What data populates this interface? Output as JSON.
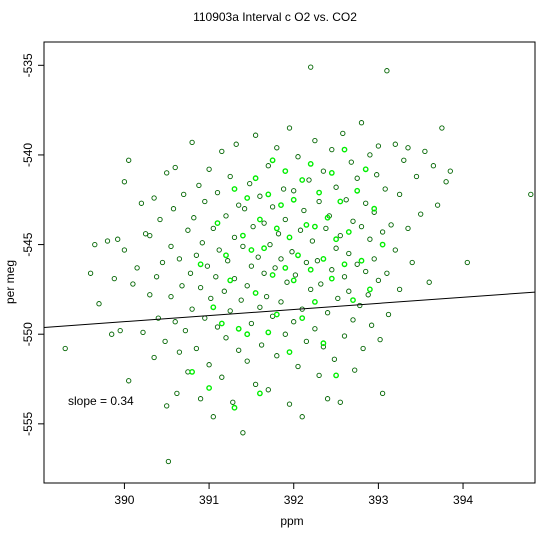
{
  "chart_data": {
    "type": "scatter",
    "title": "110903a   Interval c O2 vs. CO2",
    "xlabel": "ppm",
    "ylabel": "per meg",
    "xlim": [
      389.05,
      394.85
    ],
    "ylim": [
      -558.3,
      -533.7
    ],
    "x_ticks": [
      390,
      391,
      392,
      393,
      394
    ],
    "x_tick_labels": [
      "390",
      "391",
      "392",
      "393",
      "394"
    ],
    "y_ticks": [
      -535,
      -540,
      -545,
      -550,
      -555
    ],
    "y_tick_labels": [
      "-535",
      "-540",
      "-545",
      "-550",
      "-555"
    ],
    "grid": false,
    "annotation": "slope =  0.34",
    "fit_line": {
      "slope": 0.34,
      "intercept": -681.9
    },
    "colors": {
      "points_dark": "#006400",
      "points_bright": "#00ee00",
      "line": "#000000",
      "frame": "#000000"
    },
    "series": [
      {
        "color": "#006400",
        "points": [
          [
            389.3,
            -550.8
          ],
          [
            389.6,
            -546.6
          ],
          [
            389.65,
            -545.0
          ],
          [
            389.7,
            -548.3
          ],
          [
            389.8,
            -544.8
          ],
          [
            389.85,
            -550.0
          ],
          [
            389.88,
            -546.9
          ],
          [
            389.92,
            -544.7
          ],
          [
            389.95,
            -549.8
          ],
          [
            390.0,
            -545.3
          ],
          [
            390.0,
            -541.5
          ],
          [
            390.05,
            -540.3
          ],
          [
            390.05,
            -552.6
          ],
          [
            390.1,
            -547.2
          ],
          [
            390.15,
            -546.3
          ],
          [
            390.2,
            -542.7
          ],
          [
            390.22,
            -549.9
          ],
          [
            390.25,
            -544.4
          ],
          [
            390.3,
            -547.8
          ],
          [
            390.3,
            -544.5
          ],
          [
            390.35,
            -551.3
          ],
          [
            390.35,
            -542.4
          ],
          [
            390.38,
            -546.8
          ],
          [
            390.4,
            -549.1
          ],
          [
            390.42,
            -543.6
          ],
          [
            390.45,
            -546.0
          ],
          [
            390.48,
            -550.4
          ],
          [
            390.5,
            -541.0
          ],
          [
            390.5,
            -554.0
          ],
          [
            390.52,
            -557.1
          ],
          [
            390.55,
            -545.1
          ],
          [
            390.55,
            -547.9
          ],
          [
            390.58,
            -543.0
          ],
          [
            390.6,
            -549.3
          ],
          [
            390.6,
            -540.7
          ],
          [
            390.62,
            -553.3
          ],
          [
            390.65,
            -545.8
          ],
          [
            390.65,
            -551.0
          ],
          [
            390.68,
            -547.3
          ],
          [
            390.7,
            -542.2
          ],
          [
            390.72,
            -549.8
          ],
          [
            390.75,
            -544.2
          ],
          [
            390.75,
            -552.1
          ],
          [
            390.78,
            -546.6
          ],
          [
            390.8,
            -539.3
          ],
          [
            390.8,
            -548.6
          ],
          [
            390.82,
            -543.5
          ],
          [
            390.85,
            -550.8
          ],
          [
            390.85,
            -545.6
          ],
          [
            390.88,
            -541.7
          ],
          [
            390.9,
            -547.4
          ],
          [
            390.9,
            -553.6
          ],
          [
            390.92,
            -544.9
          ],
          [
            390.95,
            -549.1
          ],
          [
            390.95,
            -542.6
          ],
          [
            390.98,
            -546.2
          ],
          [
            391.0,
            -551.7
          ],
          [
            391.0,
            -540.8
          ],
          [
            391.02,
            -548.0
          ],
          [
            391.05,
            -544.1
          ],
          [
            391.05,
            -554.6
          ],
          [
            391.08,
            -546.8
          ],
          [
            391.1,
            -542.1
          ],
          [
            391.1,
            -549.6
          ],
          [
            391.12,
            -545.3
          ],
          [
            391.15,
            -552.4
          ],
          [
            391.15,
            -539.8
          ],
          [
            391.18,
            -547.6
          ],
          [
            391.2,
            -543.4
          ],
          [
            391.2,
            -550.2
          ],
          [
            391.22,
            -545.9
          ],
          [
            391.25,
            -541.2
          ],
          [
            391.25,
            -548.7
          ],
          [
            391.28,
            -553.8
          ],
          [
            391.3,
            -544.6
          ],
          [
            391.3,
            -546.9
          ],
          [
            391.32,
            -539.4
          ],
          [
            391.35,
            -550.9
          ],
          [
            391.35,
            -542.8
          ],
          [
            391.38,
            -548.1
          ],
          [
            391.4,
            -545.1
          ],
          [
            391.4,
            -555.5
          ],
          [
            391.42,
            -543.0
          ],
          [
            391.45,
            -547.3
          ],
          [
            391.45,
            -551.5
          ],
          [
            391.48,
            -541.6
          ],
          [
            391.5,
            -546.2
          ],
          [
            391.5,
            -549.4
          ],
          [
            391.52,
            -544.0
          ],
          [
            391.55,
            -538.9
          ],
          [
            391.55,
            -552.8
          ],
          [
            391.58,
            -545.7
          ],
          [
            391.6,
            -548.5
          ],
          [
            391.6,
            -542.3
          ],
          [
            391.62,
            -550.6
          ],
          [
            391.65,
            -546.6
          ],
          [
            391.65,
            -543.8
          ],
          [
            391.68,
            -547.9
          ],
          [
            391.7,
            -540.6
          ],
          [
            391.7,
            -553.1
          ],
          [
            391.72,
            -545.0
          ],
          [
            391.75,
            -549.0
          ],
          [
            391.75,
            -542.9
          ],
          [
            391.78,
            -546.3
          ],
          [
            391.8,
            -551.2
          ],
          [
            391.8,
            -539.6
          ],
          [
            391.82,
            -544.4
          ],
          [
            391.85,
            -548.2
          ],
          [
            391.85,
            -545.8
          ],
          [
            391.88,
            -541.9
          ],
          [
            391.9,
            -550.0
          ],
          [
            391.9,
            -543.6
          ],
          [
            391.92,
            -547.1
          ],
          [
            391.95,
            -553.9
          ],
          [
            391.95,
            -538.5
          ],
          [
            391.98,
            -545.4
          ],
          [
            392.0,
            -549.3
          ],
          [
            392.0,
            -542.0
          ],
          [
            392.02,
            -546.7
          ],
          [
            392.05,
            -551.8
          ],
          [
            392.05,
            -540.1
          ],
          [
            392.08,
            -544.2
          ],
          [
            392.1,
            -548.6
          ],
          [
            392.1,
            -554.6
          ],
          [
            392.12,
            -543.1
          ],
          [
            392.15,
            -546.0
          ],
          [
            392.15,
            -550.4
          ],
          [
            392.18,
            -541.4
          ],
          [
            392.2,
            -547.5
          ],
          [
            392.2,
            -535.1
          ],
          [
            392.22,
            -544.8
          ],
          [
            392.25,
            -549.7
          ],
          [
            392.25,
            -539.2
          ],
          [
            392.28,
            -545.9
          ],
          [
            392.3,
            -552.3
          ],
          [
            392.3,
            -542.6
          ],
          [
            392.32,
            -547.2
          ],
          [
            392.35,
            -550.7
          ],
          [
            392.35,
            -540.9
          ],
          [
            392.38,
            -544.1
          ],
          [
            392.4,
            -548.8
          ],
          [
            392.4,
            -553.6
          ],
          [
            392.42,
            -543.4
          ],
          [
            392.45,
            -546.4
          ],
          [
            392.45,
            -539.7
          ],
          [
            392.48,
            -551.4
          ],
          [
            392.5,
            -545.2
          ],
          [
            392.5,
            -541.8
          ],
          [
            392.52,
            -548.0
          ],
          [
            392.55,
            -544.5
          ],
          [
            392.55,
            -553.8
          ],
          [
            392.58,
            -538.8
          ],
          [
            392.6,
            -546.8
          ],
          [
            392.6,
            -550.1
          ],
          [
            392.62,
            -542.5
          ],
          [
            392.65,
            -547.6
          ],
          [
            392.65,
            -545.5
          ],
          [
            392.68,
            -540.4
          ],
          [
            392.7,
            -549.2
          ],
          [
            392.7,
            -543.7
          ],
          [
            392.72,
            -552.0
          ],
          [
            392.75,
            -546.1
          ],
          [
            392.75,
            -541.3
          ],
          [
            392.78,
            -548.4
          ],
          [
            392.8,
            -544.0
          ],
          [
            392.8,
            -538.2
          ],
          [
            392.82,
            -550.8
          ],
          [
            392.85,
            -546.5
          ],
          [
            392.85,
            -542.7
          ],
          [
            392.88,
            -547.8
          ],
          [
            392.9,
            -544.7
          ],
          [
            392.9,
            -540.0
          ],
          [
            392.92,
            -549.5
          ],
          [
            392.95,
            -543.2
          ],
          [
            392.95,
            -545.8
          ],
          [
            392.98,
            -541.1
          ],
          [
            393.0,
            -547.0
          ],
          [
            393.0,
            -539.5
          ],
          [
            393.02,
            -550.3
          ],
          [
            393.05,
            -544.3
          ],
          [
            393.05,
            -553.3
          ],
          [
            393.08,
            -541.9
          ],
          [
            393.1,
            -546.6
          ],
          [
            393.1,
            -535.3
          ],
          [
            393.12,
            -548.9
          ],
          [
            393.15,
            -543.9
          ],
          [
            393.2,
            -539.4
          ],
          [
            393.2,
            -545.3
          ],
          [
            393.25,
            -542.2
          ],
          [
            393.25,
            -547.5
          ],
          [
            393.3,
            -540.3
          ],
          [
            393.35,
            -544.1
          ],
          [
            393.35,
            -539.6
          ],
          [
            393.4,
            -546.0
          ],
          [
            393.45,
            -541.2
          ],
          [
            393.5,
            -543.3
          ],
          [
            393.55,
            -539.8
          ],
          [
            393.6,
            -547.1
          ],
          [
            393.65,
            -540.6
          ],
          [
            393.7,
            -542.8
          ],
          [
            393.75,
            -538.5
          ],
          [
            393.8,
            -541.5
          ],
          [
            393.85,
            -540.9
          ],
          [
            394.05,
            -546.0
          ],
          [
            394.8,
            -542.2
          ]
        ]
      },
      {
        "color": "#00ee00",
        "points": [
          [
            390.8,
            -552.1
          ],
          [
            390.9,
            -546.1
          ],
          [
            391.0,
            -553.0
          ],
          [
            391.05,
            -548.5
          ],
          [
            391.1,
            -543.8
          ],
          [
            391.15,
            -549.4
          ],
          [
            391.2,
            -545.6
          ],
          [
            391.25,
            -547.0
          ],
          [
            391.3,
            -554.1
          ],
          [
            391.3,
            -541.9
          ],
          [
            391.35,
            -549.7
          ],
          [
            391.4,
            -544.5
          ],
          [
            391.45,
            -542.4
          ],
          [
            391.45,
            -550.0
          ],
          [
            391.5,
            -545.3
          ],
          [
            391.55,
            -547.7
          ],
          [
            391.55,
            -541.3
          ],
          [
            391.6,
            -543.6
          ],
          [
            391.6,
            -553.3
          ],
          [
            391.65,
            -545.2
          ],
          [
            391.7,
            -549.9
          ],
          [
            391.7,
            -542.2
          ],
          [
            391.75,
            -546.7
          ],
          [
            391.75,
            -540.3
          ],
          [
            391.8,
            -544.1
          ],
          [
            391.8,
            -548.9
          ],
          [
            391.85,
            -542.8
          ],
          [
            391.9,
            -546.3
          ],
          [
            391.9,
            -540.9
          ],
          [
            391.95,
            -544.6
          ],
          [
            391.95,
            -551.0
          ],
          [
            392.0,
            -542.5
          ],
          [
            392.0,
            -547.0
          ],
          [
            392.05,
            -545.6
          ],
          [
            392.1,
            -541.4
          ],
          [
            392.1,
            -549.1
          ],
          [
            392.15,
            -543.9
          ],
          [
            392.2,
            -546.4
          ],
          [
            392.2,
            -540.5
          ],
          [
            392.25,
            -544.0
          ],
          [
            392.25,
            -548.2
          ],
          [
            392.3,
            -542.1
          ],
          [
            392.35,
            -545.8
          ],
          [
            392.35,
            -550.5
          ],
          [
            392.4,
            -543.5
          ],
          [
            392.45,
            -546.9
          ],
          [
            392.45,
            -541.0
          ],
          [
            392.5,
            -544.7
          ],
          [
            392.5,
            -552.3
          ],
          [
            392.55,
            -542.6
          ],
          [
            392.6,
            -546.1
          ],
          [
            392.6,
            -539.7
          ],
          [
            392.65,
            -544.3
          ],
          [
            392.7,
            -548.1
          ],
          [
            392.75,
            -542.0
          ],
          [
            392.8,
            -545.9
          ],
          [
            392.85,
            -540.8
          ],
          [
            392.9,
            -547.5
          ],
          [
            392.95,
            -543.0
          ],
          [
            393.05,
            -545.0
          ]
        ]
      }
    ]
  }
}
